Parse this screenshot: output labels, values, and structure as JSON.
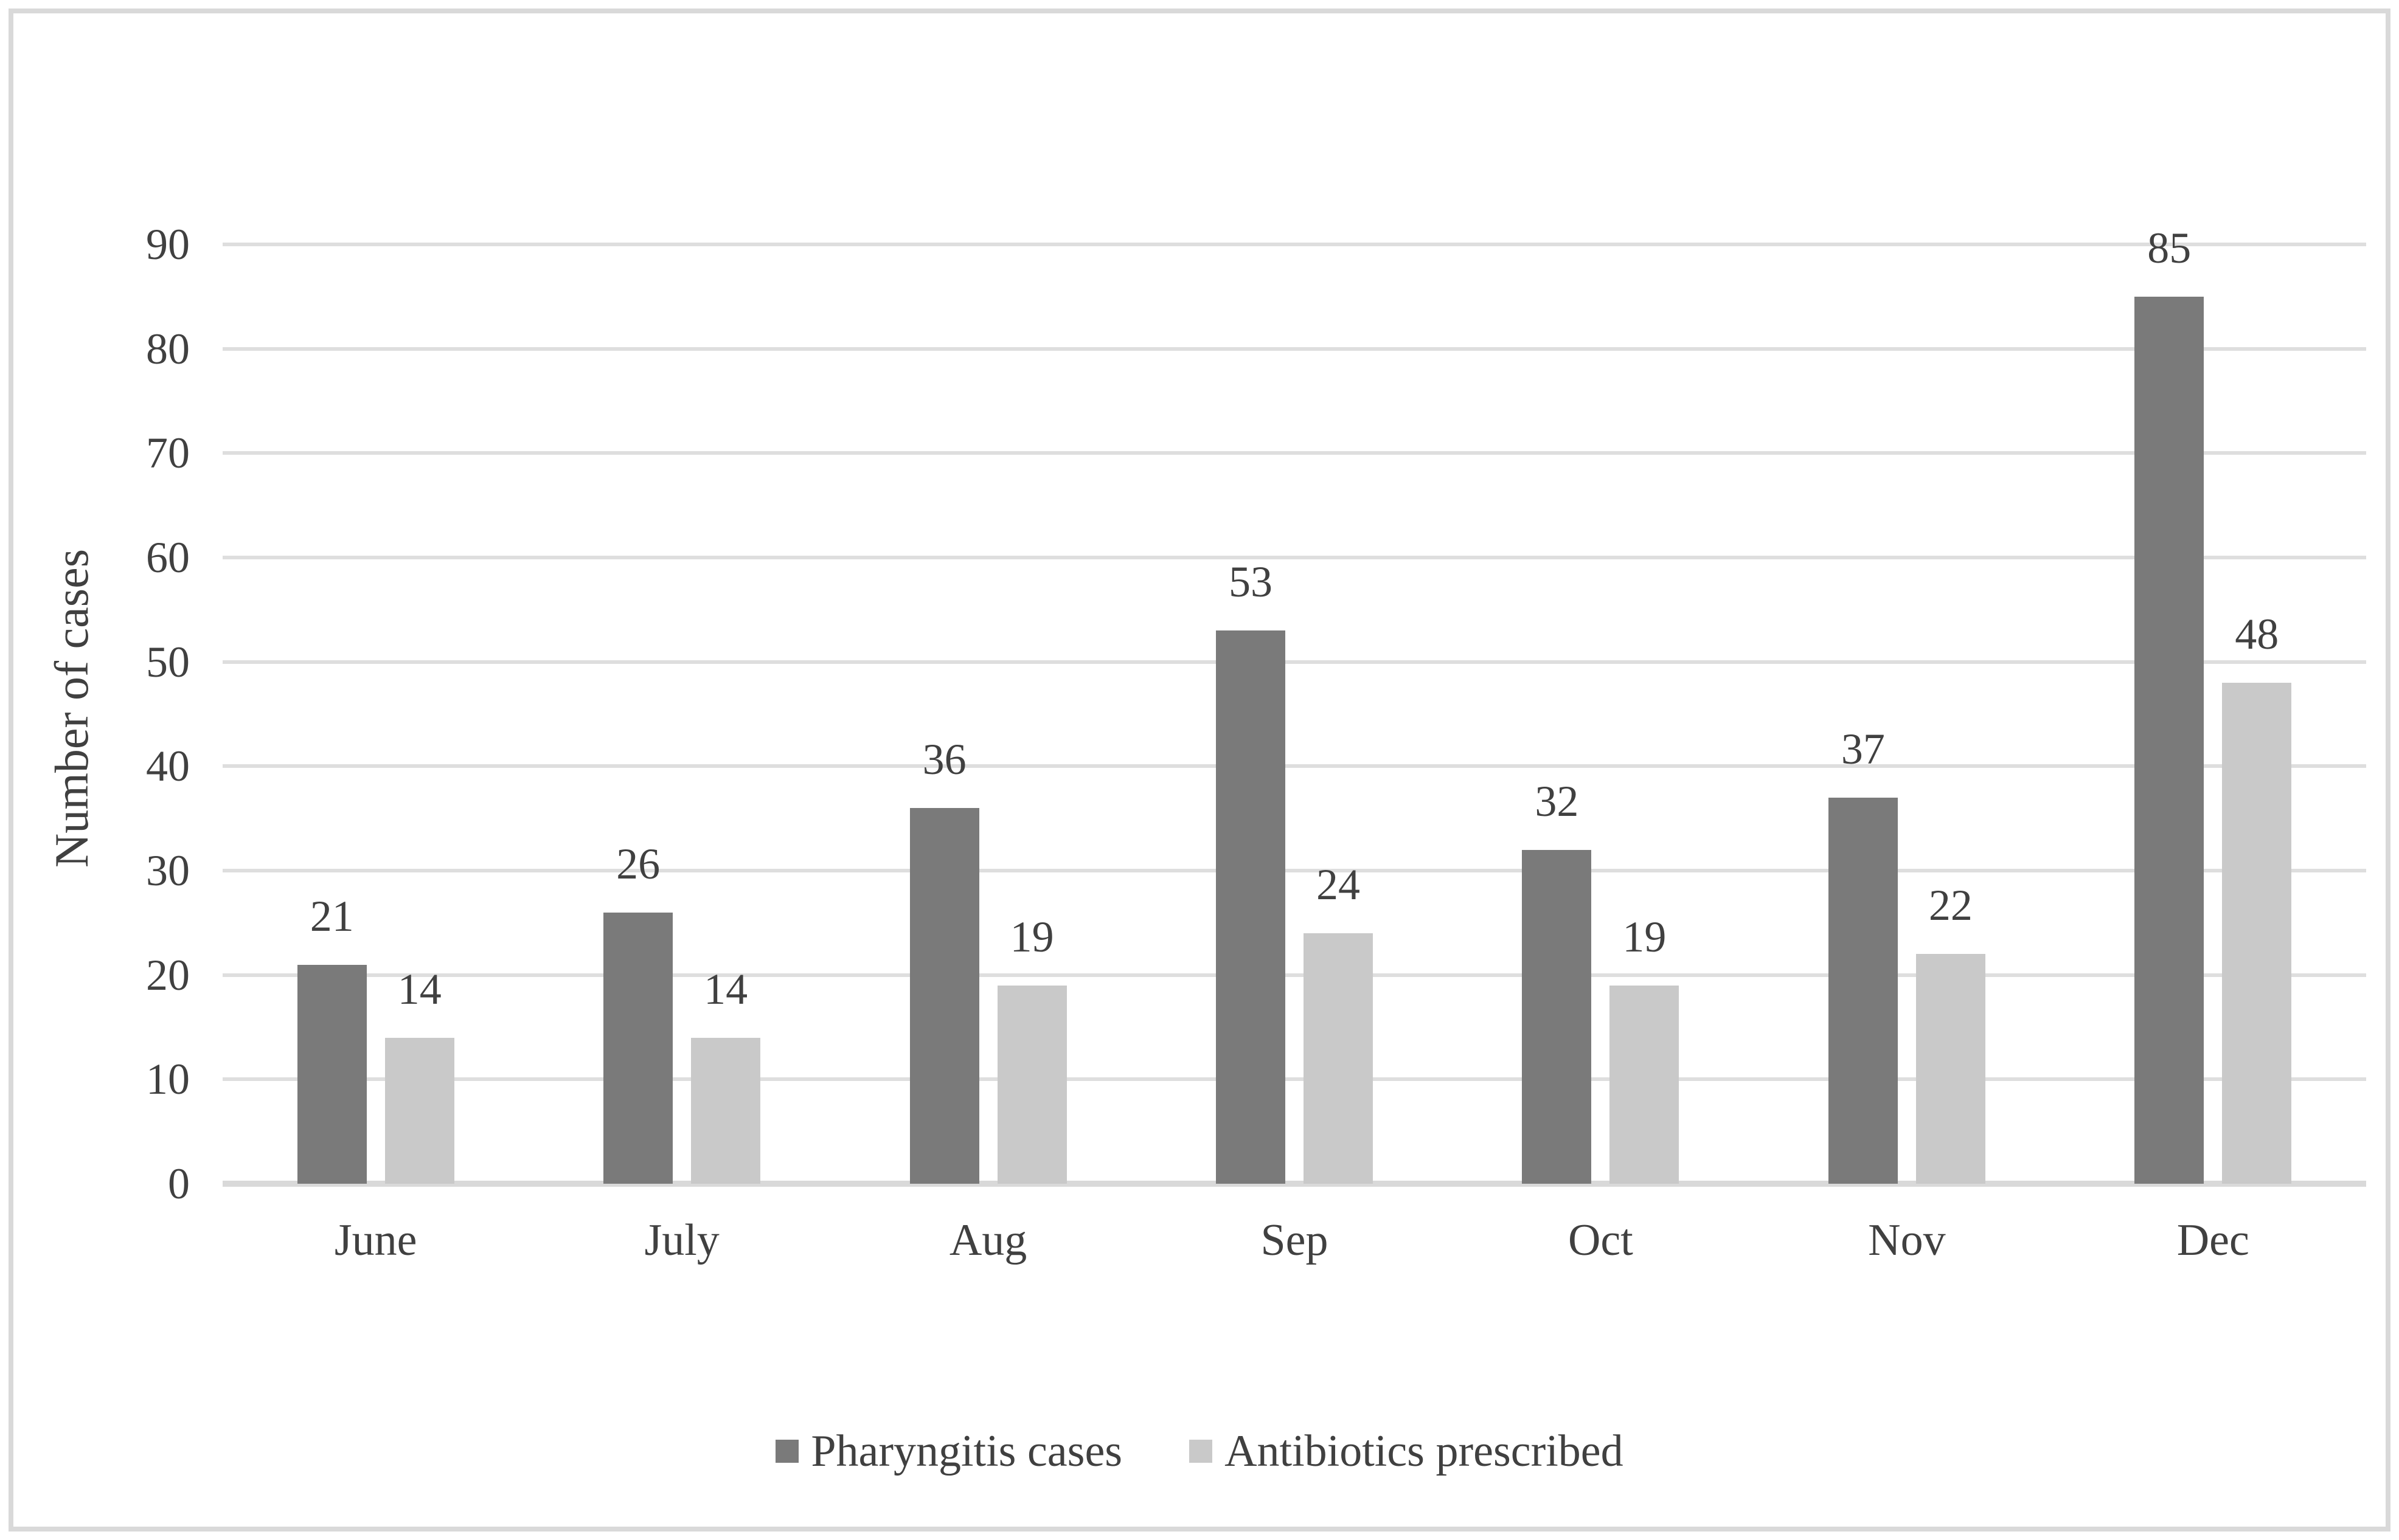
{
  "page": {
    "background": "#ffffff"
  },
  "styles": {
    "frame_border": "#d9d9d9",
    "gridline": "#dedede",
    "axis_line": "#d9d9d9",
    "text": "#404040"
  },
  "chart_data": {
    "type": "bar",
    "title": "",
    "categories": [
      "June",
      "July",
      "Aug",
      "Sep",
      "Oct",
      "Nov",
      "Dec"
    ],
    "series": [
      {
        "name": "Pharyngitis cases",
        "color": "#7a7a7a",
        "values": [
          21,
          26,
          36,
          53,
          32,
          37,
          85
        ]
      },
      {
        "name": "Antibiotics prescribed",
        "color": "#c9c9c9",
        "values": [
          14,
          14,
          19,
          24,
          19,
          22,
          48
        ]
      }
    ],
    "xlabel": "",
    "ylabel": "Number of cases",
    "ylim": [
      0,
      90
    ],
    "ytick_step": 10,
    "grid": true,
    "legend_position": "bottom",
    "data_labels": true
  }
}
